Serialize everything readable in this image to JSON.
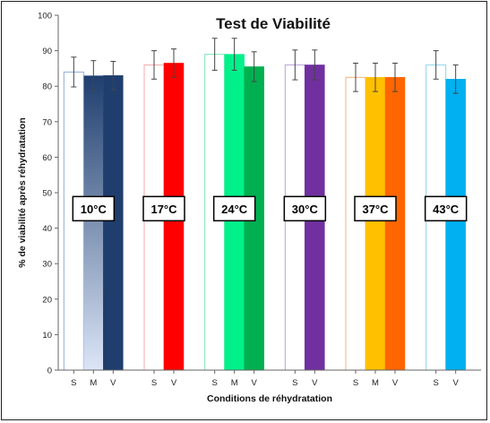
{
  "chart_data": {
    "type": "bar",
    "title": "Test de Viabilité",
    "xlabel": "Conditions de réhydratation",
    "ylabel": "% de viabilité après réhydratation",
    "ylim": [
      0,
      100
    ],
    "yticks": [
      0,
      10,
      20,
      30,
      40,
      50,
      60,
      70,
      80,
      90,
      100
    ],
    "grid": false,
    "legend": "none",
    "groups": [
      {
        "label": "10°C",
        "bars": [
          {
            "category": "S",
            "value": 84,
            "error": 4.2,
            "filled": false,
            "color": "#8faad9"
          },
          {
            "category": "M",
            "value": 83,
            "error": 4.2,
            "filled": true,
            "gradient": [
              "#dbe5f6",
              "#1f3e6e"
            ],
            "color": "#a9bfe6"
          },
          {
            "category": "V",
            "value": 83,
            "error": 4.0,
            "filled": true,
            "color": "#1f3e6e"
          }
        ]
      },
      {
        "label": "17°C",
        "bars": [
          {
            "category": "S",
            "value": 86,
            "error": 4.0,
            "filled": false,
            "color": "#f4a8a8"
          },
          {
            "category": "V",
            "value": 86.5,
            "error": 4.0,
            "filled": true,
            "color": "#ff0000"
          }
        ]
      },
      {
        "label": "24°C",
        "bars": [
          {
            "category": "S",
            "value": 89,
            "error": 4.5,
            "filled": false,
            "color": "#7ee8bb"
          },
          {
            "category": "M",
            "value": 89,
            "error": 4.5,
            "filled": true,
            "color": "#00f08a"
          },
          {
            "category": "V",
            "value": 85.5,
            "error": 4.2,
            "filled": true,
            "color": "#00b050"
          }
        ]
      },
      {
        "label": "30°C",
        "bars": [
          {
            "category": "S",
            "value": 86,
            "error": 4.2,
            "filled": false,
            "color": "#b9a3d6"
          },
          {
            "category": "V",
            "value": 86,
            "error": 4.2,
            "filled": true,
            "color": "#7030a0"
          }
        ]
      },
      {
        "label": "37°C",
        "bars": [
          {
            "category": "S",
            "value": 82.5,
            "error": 4.0,
            "filled": false,
            "color": "#f7b07a"
          },
          {
            "category": "M",
            "value": 82.5,
            "error": 4.0,
            "filled": true,
            "color": "#ffc000"
          },
          {
            "category": "V",
            "value": 82.5,
            "error": 4.0,
            "filled": true,
            "color": "#ff6600"
          }
        ]
      },
      {
        "label": "43°C",
        "bars": [
          {
            "category": "S",
            "value": 86,
            "error": 4.0,
            "filled": false,
            "color": "#8fd6ec"
          },
          {
            "category": "V",
            "value": 82,
            "error": 4.0,
            "filled": true,
            "color": "#00b0f0"
          }
        ]
      }
    ]
  }
}
